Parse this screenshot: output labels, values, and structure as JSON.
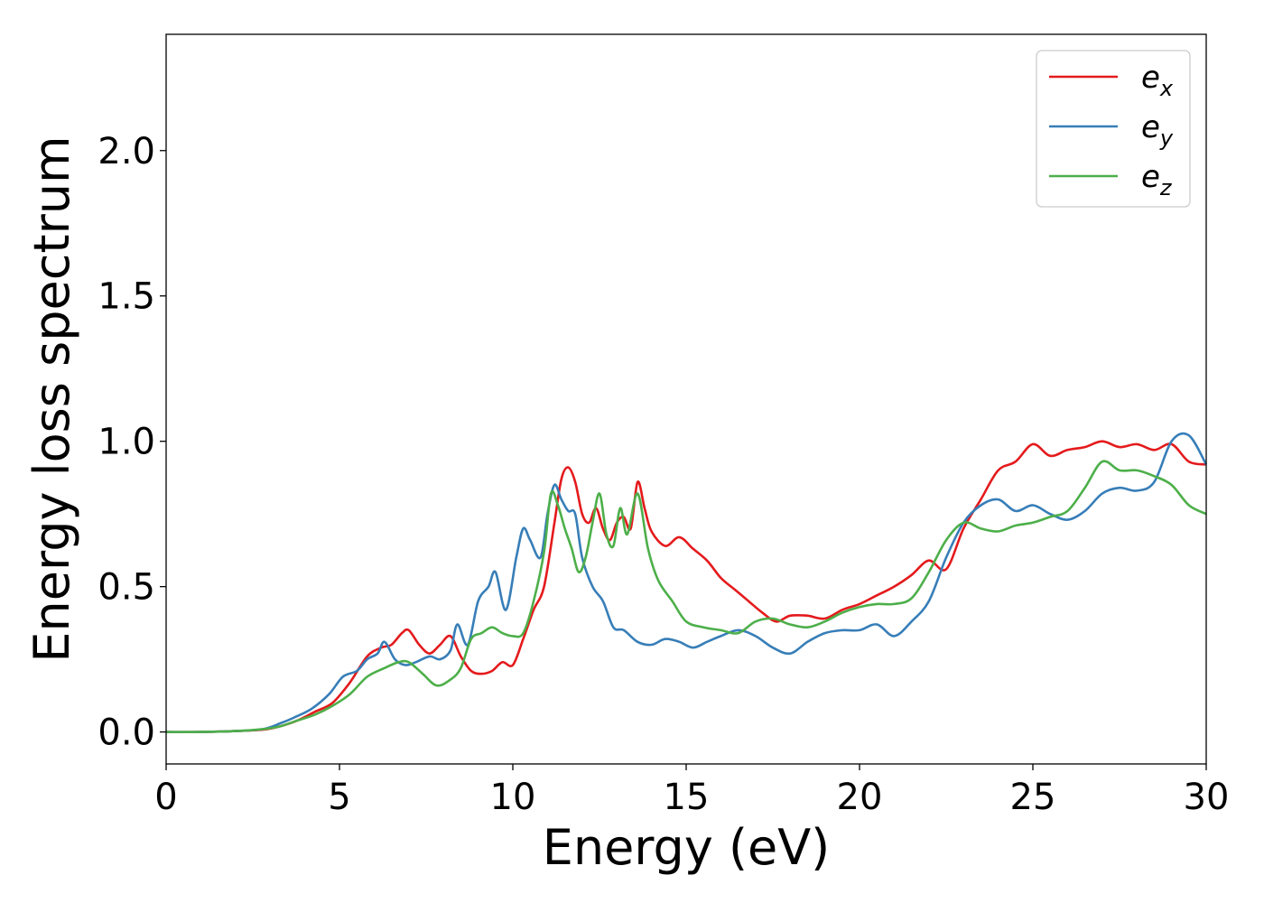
{
  "chart_data": {
    "type": "line",
    "xlabel": "Energy (eV)",
    "ylabel": "Energy loss spectrum",
    "xlim": [
      0,
      30
    ],
    "ylim": [
      -0.11,
      2.4
    ],
    "xticks": [
      "0",
      "5",
      "10",
      "15",
      "20",
      "25",
      "30"
    ],
    "yticks": [
      "0.0",
      "0.5",
      "1.0",
      "1.5",
      "2.0"
    ],
    "grid": false,
    "legend_position": "top-right",
    "series": [
      {
        "name": "e_x",
        "legend_base": "e",
        "legend_sub": "x",
        "color": "#e41a1c",
        "x": [
          0,
          1,
          2,
          2.8,
          3.3,
          3.8,
          4.3,
          4.8,
          5.3,
          5.8,
          6.2,
          6.5,
          6.8,
          7.0,
          7.3,
          7.6,
          7.9,
          8.2,
          8.5,
          8.8,
          9.1,
          9.4,
          9.7,
          10.0,
          10.3,
          10.6,
          10.9,
          11.2,
          11.4,
          11.6,
          11.8,
          12.0,
          12.2,
          12.4,
          12.6,
          12.8,
          13.0,
          13.2,
          13.4,
          13.6,
          13.8,
          14.0,
          14.4,
          14.8,
          15.2,
          15.6,
          16.0,
          16.4,
          16.8,
          17.2,
          17.6,
          18.0,
          18.5,
          19.0,
          19.5,
          20.0,
          20.5,
          21.0,
          21.5,
          22.0,
          22.5,
          23.0,
          23.5,
          24.0,
          24.5,
          25.0,
          25.5,
          26.0,
          26.5,
          27.0,
          27.5,
          28.0,
          28.5,
          29.0,
          29.5,
          30.0
        ],
        "y": [
          0.0,
          0.0,
          0.003,
          0.008,
          0.02,
          0.04,
          0.07,
          0.1,
          0.17,
          0.26,
          0.29,
          0.3,
          0.34,
          0.35,
          0.3,
          0.27,
          0.3,
          0.33,
          0.26,
          0.21,
          0.2,
          0.21,
          0.24,
          0.23,
          0.32,
          0.42,
          0.5,
          0.72,
          0.87,
          0.91,
          0.86,
          0.75,
          0.72,
          0.77,
          0.7,
          0.66,
          0.72,
          0.74,
          0.7,
          0.86,
          0.77,
          0.69,
          0.64,
          0.67,
          0.63,
          0.59,
          0.53,
          0.49,
          0.45,
          0.41,
          0.38,
          0.4,
          0.4,
          0.39,
          0.42,
          0.44,
          0.47,
          0.5,
          0.54,
          0.59,
          0.56,
          0.7,
          0.8,
          0.9,
          0.93,
          0.99,
          0.95,
          0.97,
          0.98,
          1.0,
          0.98,
          0.99,
          0.97,
          0.99,
          0.93,
          0.92
        ]
      },
      {
        "name": "e_y",
        "legend_base": "e",
        "legend_sub": "y",
        "color": "#377eb8",
        "x": [
          0,
          1,
          2,
          2.8,
          3.3,
          3.7,
          4.2,
          4.7,
          5.1,
          5.5,
          5.8,
          6.1,
          6.3,
          6.6,
          6.9,
          7.2,
          7.6,
          7.9,
          8.2,
          8.4,
          8.7,
          9.0,
          9.3,
          9.5,
          9.8,
          10.1,
          10.3,
          10.5,
          10.8,
          11.0,
          11.2,
          11.4,
          11.6,
          11.8,
          12.0,
          12.3,
          12.6,
          12.9,
          13.2,
          13.6,
          14.0,
          14.4,
          14.8,
          15.2,
          15.6,
          16.0,
          16.5,
          17.0,
          17.5,
          18.0,
          18.5,
          19.0,
          19.5,
          20.0,
          20.5,
          21.0,
          21.5,
          22.0,
          22.5,
          23.0,
          23.5,
          24.0,
          24.5,
          25.0,
          25.5,
          26.0,
          26.5,
          27.0,
          27.5,
          28.0,
          28.5,
          29.0,
          29.5,
          30.0
        ],
        "y": [
          0.0,
          0.0,
          0.003,
          0.01,
          0.03,
          0.05,
          0.08,
          0.13,
          0.19,
          0.21,
          0.25,
          0.27,
          0.31,
          0.25,
          0.23,
          0.24,
          0.26,
          0.25,
          0.28,
          0.37,
          0.3,
          0.45,
          0.5,
          0.55,
          0.42,
          0.6,
          0.7,
          0.66,
          0.6,
          0.75,
          0.85,
          0.8,
          0.76,
          0.75,
          0.6,
          0.5,
          0.45,
          0.36,
          0.35,
          0.31,
          0.3,
          0.32,
          0.31,
          0.29,
          0.31,
          0.33,
          0.35,
          0.33,
          0.29,
          0.27,
          0.31,
          0.34,
          0.35,
          0.35,
          0.37,
          0.33,
          0.38,
          0.45,
          0.6,
          0.72,
          0.78,
          0.8,
          0.76,
          0.78,
          0.75,
          0.73,
          0.76,
          0.82,
          0.84,
          0.83,
          0.86,
          1.0,
          1.02,
          0.92
        ]
      },
      {
        "name": "e_z",
        "legend_base": "e",
        "legend_sub": "z",
        "color": "#4daf4a",
        "x": [
          0,
          1,
          2,
          2.8,
          3.3,
          3.8,
          4.3,
          4.8,
          5.3,
          5.8,
          6.3,
          6.7,
          7.0,
          7.4,
          7.8,
          8.2,
          8.5,
          8.8,
          9.1,
          9.4,
          9.7,
          10.0,
          10.3,
          10.6,
          10.9,
          11.1,
          11.3,
          11.5,
          11.7,
          11.9,
          12.1,
          12.3,
          12.5,
          12.7,
          12.9,
          13.1,
          13.3,
          13.6,
          13.9,
          14.2,
          14.6,
          15.0,
          15.5,
          16.0,
          16.5,
          17.0,
          17.5,
          18.0,
          18.5,
          19.0,
          19.5,
          20.0,
          20.5,
          21.0,
          21.5,
          22.0,
          22.5,
          23.0,
          23.5,
          24.0,
          24.5,
          25.0,
          25.5,
          26.0,
          26.5,
          27.0,
          27.5,
          28.0,
          28.5,
          29.0,
          29.5,
          30.0
        ],
        "y": [
          0.0,
          0.0,
          0.003,
          0.01,
          0.02,
          0.04,
          0.06,
          0.09,
          0.13,
          0.19,
          0.22,
          0.24,
          0.24,
          0.2,
          0.16,
          0.18,
          0.22,
          0.32,
          0.34,
          0.36,
          0.34,
          0.33,
          0.34,
          0.45,
          0.62,
          0.82,
          0.78,
          0.7,
          0.63,
          0.55,
          0.6,
          0.72,
          0.82,
          0.68,
          0.64,
          0.77,
          0.68,
          0.82,
          0.63,
          0.52,
          0.45,
          0.38,
          0.36,
          0.35,
          0.34,
          0.38,
          0.39,
          0.37,
          0.36,
          0.38,
          0.41,
          0.43,
          0.44,
          0.44,
          0.46,
          0.55,
          0.66,
          0.72,
          0.7,
          0.69,
          0.71,
          0.72,
          0.74,
          0.76,
          0.84,
          0.93,
          0.9,
          0.9,
          0.88,
          0.85,
          0.78,
          0.75
        ]
      }
    ]
  }
}
